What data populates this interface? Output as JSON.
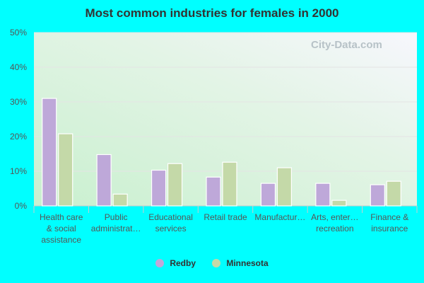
{
  "chart_data": {
    "type": "bar",
    "title": "Most common industries for females in 2000",
    "categories": [
      [
        "Health care",
        "& social",
        "assistance"
      ],
      [
        "Public",
        "administrat…"
      ],
      [
        "Educational",
        "services"
      ],
      [
        "Retail trade"
      ],
      [
        "Manufactur…"
      ],
      [
        "Arts, enter…",
        "recreation"
      ],
      [
        "Finance &",
        "insurance"
      ]
    ],
    "series": [
      {
        "name": "Redby",
        "color": "#bea8d9",
        "values": [
          31.0,
          14.8,
          10.3,
          8.3,
          6.5,
          6.5,
          6.1
        ]
      },
      {
        "name": "Minnesota",
        "color": "#c4d9a8",
        "values": [
          20.8,
          3.4,
          12.2,
          12.6,
          11.0,
          1.6,
          7.1
        ]
      }
    ],
    "ylim": [
      0,
      50
    ],
    "yticks": [
      "0%",
      "10%",
      "20%",
      "30%",
      "40%",
      "50%"
    ],
    "grid": true,
    "legend": "bottom"
  },
  "watermark": "City-Data.com"
}
